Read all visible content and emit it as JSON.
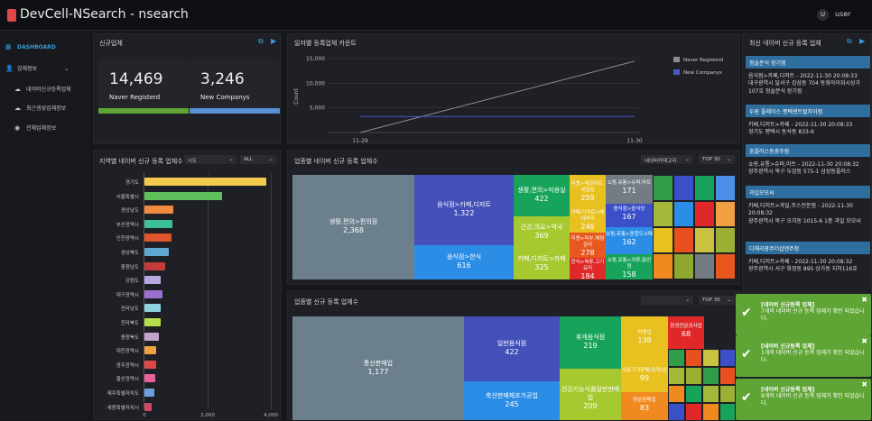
{
  "app": {
    "title": "DevCell-NSearch - nsearch",
    "user_initial": "U",
    "user_name": "user"
  },
  "sidebar": {
    "items": [
      {
        "label": "DASHBOARD",
        "icon": "grid-icon"
      },
      {
        "label": "업체정보",
        "icon": "user-icon"
      },
      {
        "label": "네이버신규등록업체",
        "icon": "cloud-icon"
      },
      {
        "label": "최근생성업체정보",
        "icon": "cloud-icon"
      },
      {
        "label": "전체업체정보",
        "icon": "eye-icon"
      }
    ]
  },
  "new_biz": {
    "title": "신규업체",
    "naver_value": "14,469",
    "naver_label": "Naver Registerd",
    "new_value": "3,246",
    "new_label": "New Companys",
    "naver_color": "#5fa535",
    "new_color": "#5b8fd6"
  },
  "daily_count": {
    "title": "일자별 등록업체 카운트",
    "chart_data": {
      "type": "line",
      "x": [
        "11-29",
        "11-30"
      ],
      "ylabel": "Count",
      "ylim": [
        0,
        15000
      ],
      "yticks": [
        "15,000",
        "10,000",
        "5,000"
      ],
      "series": [
        {
          "name": "Naver Registerd",
          "values": [
            0,
            14469
          ],
          "color": "#8b8d92"
        },
        {
          "name": "New Companys",
          "values": [
            3246,
            3246
          ],
          "color": "#4a56c9"
        }
      ],
      "legend": "right"
    }
  },
  "region": {
    "title": "지역별 네이버 신규 등록 업체수",
    "filter1": "시도",
    "filter2": "ALL",
    "chart_data": {
      "type": "bar",
      "orientation": "horizontal",
      "categories": [
        "경기도",
        "서울특별시",
        "경상남도",
        "부산광역시",
        "인천광역시",
        "경상북도",
        "충청남도",
        "강원도",
        "대구광역시",
        "전라남도",
        "전라북도",
        "충청북도",
        "대전광역시",
        "광주광역시",
        "울산광역시",
        "제주특별자치도",
        "세종특별자치시"
      ],
      "values": [
        3850,
        2450,
        900,
        880,
        850,
        760,
        650,
        520,
        560,
        520,
        500,
        470,
        380,
        380,
        340,
        300,
        240
      ],
      "colors": [
        "#f2c94c",
        "#5fbf5a",
        "#f08a3c",
        "#3cbf9a",
        "#e0542e",
        "#5fa8d0",
        "#c53a3a",
        "#b8a8e0",
        "#9b6fd0",
        "#8fd3e0",
        "#b6e04a",
        "#c4a3d0",
        "#f0a040",
        "#e04848",
        "#e8609a",
        "#6ca0e0",
        "#d04868"
      ],
      "xticks": [
        "0",
        "2,000",
        "4,000"
      ],
      "xlim": [
        0,
        4000
      ]
    }
  },
  "industry": {
    "title": "업종별 네이버 신규 등록 업체수",
    "filter1": "네이버카테고리",
    "filter2": "TOP 30",
    "chart_data": {
      "type": "treemap",
      "items": [
        {
          "label": "생활,편의>편의점",
          "value": 2368,
          "color": "#6b7f8c"
        },
        {
          "label": "음식점>카페,디저트",
          "value": 1322,
          "color": "#4350b8"
        },
        {
          "label": "음식점>한식",
          "value": 616,
          "color": "#2b8de6"
        },
        {
          "label": "생활,편의>미용실",
          "value": 422,
          "color": "#17a35a"
        },
        {
          "label": "건강,의료>약국",
          "value": 369,
          "color": "#a7c930"
        },
        {
          "label": "카페,디저트>카페",
          "value": 325,
          "color": "#a7c930"
        },
        {
          "label": "미용>네일아트,네일샵",
          "value": 259,
          "color": "#e8c020"
        },
        {
          "label": "카페,디저트>베이커리",
          "value": 246,
          "color": "#e8c020"
        },
        {
          "label": "미용>피부,체형관리",
          "value": 278,
          "color": "#e8571e"
        },
        {
          "label": "한식>육류,고기요리",
          "value": 184,
          "color": "#e02828"
        },
        {
          "label": "쇼핑,유통>슈퍼,마트",
          "value": 171,
          "color": "#737b83"
        },
        {
          "label": "음식점>중식당",
          "value": 167,
          "color": "#3b4fc9"
        },
        {
          "label": "쇼핑,유통>종합도소매",
          "value": 162,
          "color": "#2b8de6"
        },
        {
          "label": "쇼핑,유통>의류,닭강정",
          "value": 158,
          "color": "#17a35a"
        }
      ]
    }
  },
  "category": {
    "title": "업종별 신규 등록 업체수",
    "filter2": "TOP 30",
    "chart_data": {
      "type": "treemap",
      "items": [
        {
          "label": "통신판매업",
          "value": 1177,
          "color": "#6b7f8c"
        },
        {
          "label": "일반음식점",
          "value": 422,
          "color": "#4350b8"
        },
        {
          "label": "축산판매제조가공업",
          "value": 245,
          "color": "#2b8de6"
        },
        {
          "label": "휴게음식점",
          "value": 219,
          "color": "#17a35a"
        },
        {
          "label": "건강기능식품일반판매업",
          "value": 209,
          "color": "#a7c930"
        },
        {
          "label": "미용업",
          "value": 138,
          "color": "#e8c020"
        },
        {
          "label": "의료기기판매(임대)업",
          "value": 99,
          "color": "#e8c020"
        },
        {
          "label": "방문판매업",
          "value": 83,
          "color": "#f08a20"
        },
        {
          "label": "환경전문공사업",
          "value": 68,
          "color": "#e02828"
        }
      ]
    }
  },
  "recent": {
    "title": "최신 네이버 신규 등록 업체",
    "entries": [
      {
        "name": "정솔분식 장기점",
        "line1": "음식점>카페,디저트 - 2022-11-30 20:08:33",
        "line2": "대구광역시 달서구 감삼동 704 동화아이위시상가 107호 정솔분식 장기점"
      },
      {
        "name": "두원 플레이스 평택센트럴자이점",
        "line1": "카페,디저트>카페 - 2022-11-30 20:08:33",
        "line2": "경기도 평택시 동삭동 833-6"
      },
      {
        "name": "훈플러스동광주점",
        "line1": "쇼핑,유통>슈퍼,마트 - 2022-11-30 20:08:32",
        "line2": "광주광역시 북구 두암동 575-1 삼성동플러스"
      },
      {
        "name": "과일모모씨",
        "line1": "카페,디저트>과일,주스전문점 - 2022-11-30 20:08:32",
        "line2": "광주광역시 북구 오치동 1015-6 1층 과일 모모씨"
      },
      {
        "name": "디해리광주더샵엔주점",
        "line1": "카페,디저트>카페 - 2022-11-30 20:08:32",
        "line2": "광주광역시 서구 화정동 895 상가동 지하116호"
      }
    ]
  },
  "toasts": [
    {
      "title": "[네이버 신규등록 업체]",
      "body": "7개의 네이버 신규 등록 업체가 확인 되었습니다."
    },
    {
      "title": "[네이버 신규등록 업체]",
      "body": "1개의 네이버 신규 등록 업체가 확인 되었습니다."
    },
    {
      "title": "[네이버 신규등록 업체]",
      "body": "9개의 네이버 신규 등록 업체가 확인 되었습니다."
    }
  ]
}
